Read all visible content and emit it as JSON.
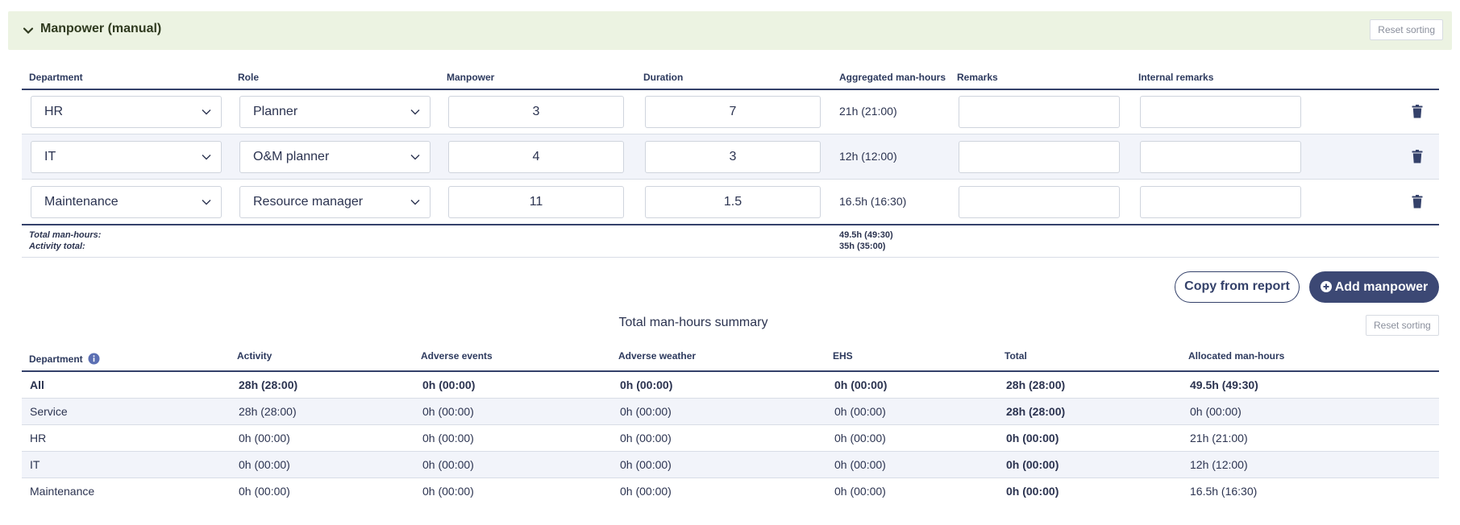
{
  "section": {
    "title": "Manpower (manual)",
    "reset_label": "Reset sorting"
  },
  "manpower_table": {
    "headers": {
      "department": "Department",
      "role": "Role",
      "manpower": "Manpower",
      "duration": "Duration",
      "aggregated": "Aggregated man-hours",
      "remarks": "Remarks",
      "internal_remarks": "Internal remarks"
    },
    "rows": [
      {
        "department": "HR",
        "role": "Planner",
        "manpower": "3",
        "duration": "7",
        "aggregated": "21h (21:00)",
        "remarks": "",
        "internal_remarks": ""
      },
      {
        "department": "IT",
        "role": "O&M planner",
        "manpower": "4",
        "duration": "3",
        "aggregated": "12h (12:00)",
        "remarks": "",
        "internal_remarks": ""
      },
      {
        "department": "Maintenance",
        "role": "Resource manager",
        "manpower": "11",
        "duration": "1.5",
        "aggregated": "16.5h (16:30)",
        "remarks": "",
        "internal_remarks": ""
      }
    ],
    "totals": {
      "total_label": "Total man-hours:",
      "total_value": "49.5h (49:30)",
      "activity_label": "Activity total:",
      "activity_value": "35h (35:00)"
    }
  },
  "actions": {
    "copy_label": "Copy from report",
    "add_label": "Add manpower"
  },
  "summary": {
    "title": "Total man-hours summary",
    "reset_label": "Reset sorting",
    "headers": {
      "department": "Department",
      "activity": "Activity",
      "adverse_events": "Adverse events",
      "adverse_weather": "Adverse weather",
      "ehs": "EHS",
      "total": "Total",
      "allocated": "Allocated man-hours"
    },
    "rows": [
      {
        "department": "All",
        "activity": "28h (28:00)",
        "adverse_events": "0h (00:00)",
        "adverse_weather": "0h (00:00)",
        "ehs": "0h (00:00)",
        "total": "28h (28:00)",
        "allocated": "49.5h (49:30)"
      },
      {
        "department": "Service",
        "activity": "28h (28:00)",
        "adverse_events": "0h (00:00)",
        "adverse_weather": "0h (00:00)",
        "ehs": "0h (00:00)",
        "total": "28h (28:00)",
        "allocated": "0h (00:00)"
      },
      {
        "department": "HR",
        "activity": "0h (00:00)",
        "adverse_events": "0h (00:00)",
        "adverse_weather": "0h (00:00)",
        "ehs": "0h (00:00)",
        "total": "0h (00:00)",
        "allocated": "21h (21:00)"
      },
      {
        "department": "IT",
        "activity": "0h (00:00)",
        "adverse_events": "0h (00:00)",
        "adverse_weather": "0h (00:00)",
        "ehs": "0h (00:00)",
        "total": "0h (00:00)",
        "allocated": "12h (12:00)"
      },
      {
        "department": "Maintenance",
        "activity": "0h (00:00)",
        "adverse_events": "0h (00:00)",
        "adverse_weather": "0h (00:00)",
        "ehs": "0h (00:00)",
        "total": "0h (00:00)",
        "allocated": "16.5h (16:30)"
      }
    ]
  },
  "colors": {
    "header_bg": "#ecf3e2",
    "accent": "#3c4874",
    "row_alt": "#f2f4fa"
  },
  "icons": [
    "chevron-down-icon",
    "caret-down-icon",
    "trash-icon",
    "plus-circle-icon",
    "info-icon"
  ]
}
